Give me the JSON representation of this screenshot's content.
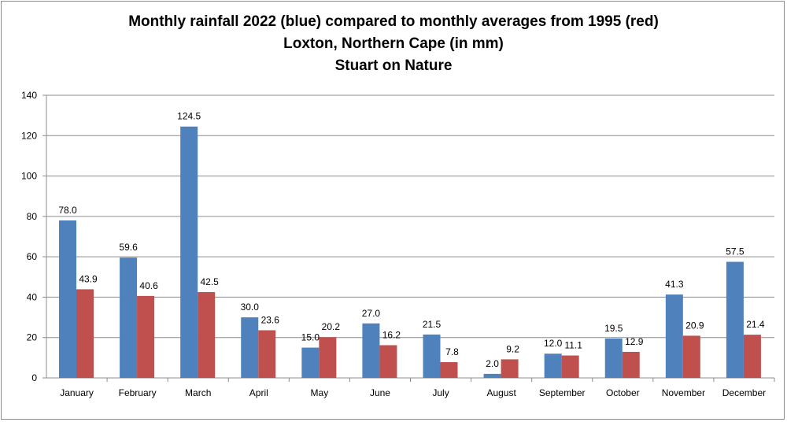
{
  "chart_data": {
    "type": "bar",
    "title_lines": [
      "Monthly rainfall 2022 (blue) compared to monthly averages from 1995 (red)",
      "Loxton, Northern Cape (in mm)",
      "Stuart on Nature"
    ],
    "categories": [
      "January",
      "February",
      "March",
      "April",
      "May",
      "June",
      "July",
      "August",
      "September",
      "October",
      "November",
      "December"
    ],
    "series": [
      {
        "values": [
          78.0,
          59.6,
          124.5,
          30.0,
          15.0,
          27.0,
          21.5,
          2.0,
          12.0,
          19.5,
          41.3,
          57.5
        ],
        "color": "#4f81bd"
      },
      {
        "values": [
          43.9,
          40.6,
          42.5,
          23.6,
          20.2,
          16.2,
          7.8,
          9.2,
          11.1,
          12.9,
          20.9,
          21.4
        ],
        "color": "#c0504d"
      }
    ],
    "data_labels": [
      [
        "78.0",
        "59.6",
        "124.5",
        "30.0",
        "15.0",
        "27.0",
        "21.5",
        "2.0",
        "12.0",
        "19.5",
        "41.3",
        "57.5"
      ],
      [
        "43.9",
        "40.6",
        "42.5",
        "23.6",
        "20.2",
        "16.2",
        "7.8",
        "9.2",
        "11.1",
        "12.9",
        "20.9",
        "21.4"
      ]
    ],
    "ylim": [
      0,
      140
    ],
    "yticks": [
      0,
      20,
      40,
      60,
      80,
      100,
      120,
      140
    ],
    "grid": true,
    "legend": "none"
  }
}
